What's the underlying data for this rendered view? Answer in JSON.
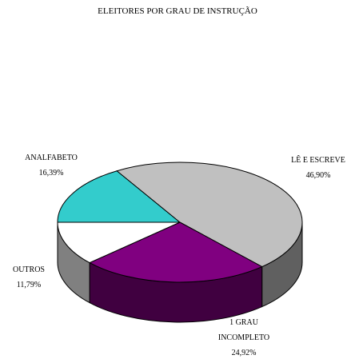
{
  "chart_data": {
    "type": "pie",
    "title": "ELEITORES POR GRAU DE INSTRUÇÃO",
    "categories": [
      "ANALFABETO",
      "LÊ E ESCREVE",
      "1 GRAU INCOMPLETO",
      "OUTROS"
    ],
    "values": [
      16.39,
      46.9,
      24.92,
      11.79
    ],
    "value_labels": [
      "16,39%",
      "46,90%",
      "24,92%",
      "11,79%"
    ],
    "colors": [
      "#33cccc",
      "#c0c0c0",
      "#800080",
      "#ffffff"
    ]
  }
}
